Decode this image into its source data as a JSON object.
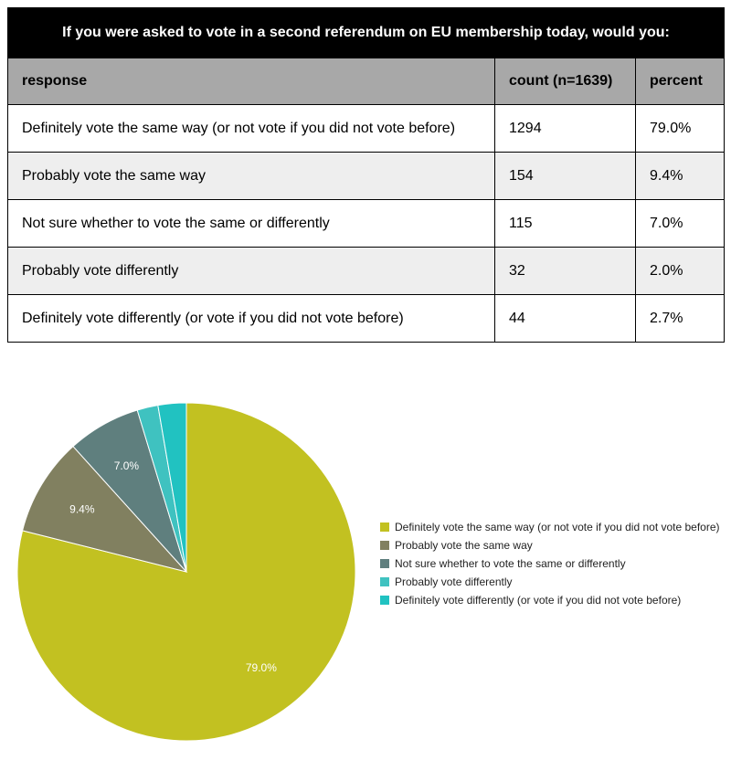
{
  "table": {
    "title": "If you were asked to vote in a second referendum on EU membership today, would you:",
    "headers": [
      "response",
      "count (n=1639)",
      "percent"
    ],
    "rows": [
      [
        "Definitely vote the same way (or not vote if you did not vote before)",
        "1294",
        "79.0%"
      ],
      [
        "Probably vote the same way",
        "154",
        "9.4%"
      ],
      [
        "Not sure whether to vote the same or differently",
        "115",
        "7.0%"
      ],
      [
        "Probably vote differently",
        "32",
        "2.0%"
      ],
      [
        "Definitely vote differently (or vote if you did not vote before)",
        "44",
        "2.7%"
      ]
    ]
  },
  "chart_data": {
    "type": "pie",
    "categories": [
      "Definitely vote the same way (or not vote if you did not vote before)",
      "Probably vote the same way",
      "Not sure whether to vote the same or differently",
      "Probably vote differently",
      "Definitely vote differently (or vote if you did not vote before)"
    ],
    "values": [
      79.0,
      9.4,
      7.0,
      2.0,
      2.7
    ],
    "labels": [
      "79.0%",
      "9.4%",
      "7.0%",
      "",
      ""
    ],
    "colors": [
      "#c2c121",
      "#818060",
      "#5f7f7e",
      "#3fc2c0",
      "#21c2c1"
    ],
    "legend_position": "right",
    "start": "12 o'clock, clockwise"
  }
}
